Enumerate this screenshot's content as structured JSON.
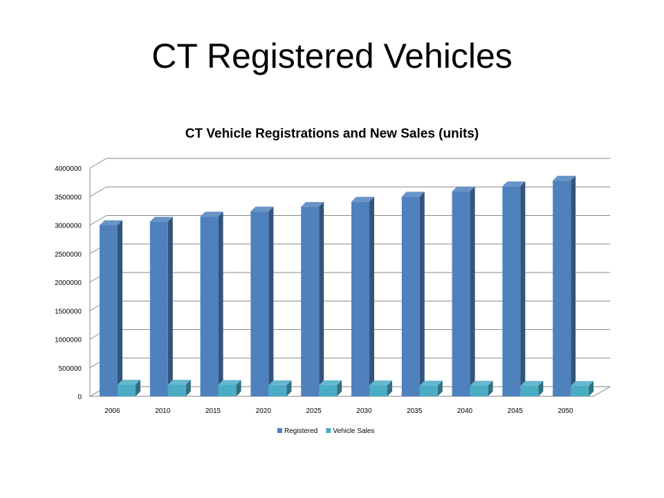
{
  "slide": {
    "title": "CT Registered Vehicles"
  },
  "chart_data": {
    "type": "bar",
    "title": "CT Vehicle Registrations and New Sales (units)",
    "categories": [
      "2006",
      "2010",
      "2015",
      "2020",
      "2025",
      "2030",
      "2035",
      "2040",
      "2045",
      "2050"
    ],
    "series": [
      {
        "name": "Registered",
        "color": "#4F81BD",
        "values": [
          3000000,
          3060000,
          3150000,
          3240000,
          3320000,
          3410000,
          3500000,
          3590000,
          3680000,
          3780000
        ]
      },
      {
        "name": "Vehicle Sales",
        "color": "#4BACC6",
        "values": [
          205000,
          205000,
          200000,
          195000,
          195000,
          193000,
          190000,
          188000,
          185000,
          183000
        ]
      }
    ],
    "ylim": [
      0,
      4000000
    ],
    "yticks": [
      "0",
      "500000",
      "1000000",
      "1500000",
      "2000000",
      "2500000",
      "3000000",
      "3500000",
      "4000000"
    ],
    "xlabel": "",
    "ylabel": "",
    "grid": true,
    "legend_position": "bottom",
    "style": "3d-clustered-column"
  }
}
